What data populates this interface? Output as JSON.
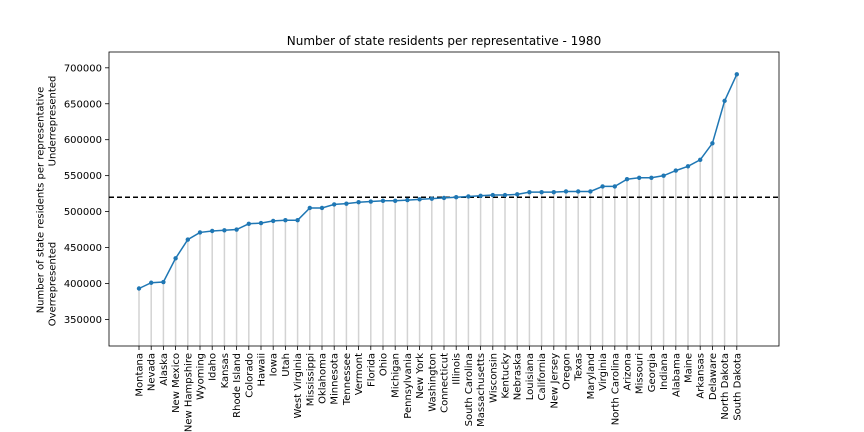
{
  "chart_data": {
    "type": "line",
    "title": "Number of state residents per representative - 1980",
    "xlabel": "",
    "ylabel": "Number of state residents per representative",
    "ylabel_lines": [
      "Number of state residents per representative",
      "Overrepresented",
      "Underrepresented"
    ],
    "ylim": [
      313000,
      722000
    ],
    "yticks": [
      350000,
      400000,
      450000,
      500000,
      550000,
      600000,
      650000,
      700000
    ],
    "reference_line": 520000,
    "grid": false,
    "legend": "none",
    "categories": [
      "Montana",
      "Nevada",
      "Alaska",
      "New Mexico",
      "New Hampshire",
      "Wyoming",
      "Idaho",
      "Kansas",
      "Rhode Island",
      "Colorado",
      "Hawaii",
      "Iowa",
      "Utah",
      "West Virginia",
      "Mississippi",
      "Oklahoma",
      "Minnesota",
      "Tennessee",
      "Vermont",
      "Florida",
      "Ohio",
      "Michigan",
      "Pennsylvania",
      "New York",
      "Washington",
      "Connecticut",
      "Illinois",
      "South Carolina",
      "Massachusetts",
      "Wisconsin",
      "Kentucky",
      "Nebraska",
      "Louisiana",
      "California",
      "New Jersey",
      "Oregon",
      "Texas",
      "Maryland",
      "Virginia",
      "North Carolina",
      "Arizona",
      "Missouri",
      "Georgia",
      "Indiana",
      "Alabama",
      "Maine",
      "Arkansas",
      "Delaware",
      "North Dakota",
      "South Dakota"
    ],
    "series": [
      {
        "values": [
          393000,
          401000,
          402000,
          435000,
          461000,
          471000,
          473000,
          474000,
          475000,
          483000,
          484000,
          487000,
          488000,
          488000,
          505000,
          505000,
          510000,
          511000,
          513000,
          514000,
          515000,
          515000,
          516000,
          517000,
          518000,
          519000,
          520000,
          521000,
          522000,
          523000,
          523000,
          524000,
          527000,
          527000,
          527000,
          528000,
          528000,
          528000,
          535000,
          535000,
          545000,
          547000,
          547000,
          550000,
          557000,
          563000,
          572000,
          595000,
          654000,
          691000
        ]
      }
    ],
    "colors": {
      "line": "#1f77b4",
      "stem": "#d3d3d3",
      "reference": "#000000"
    }
  }
}
